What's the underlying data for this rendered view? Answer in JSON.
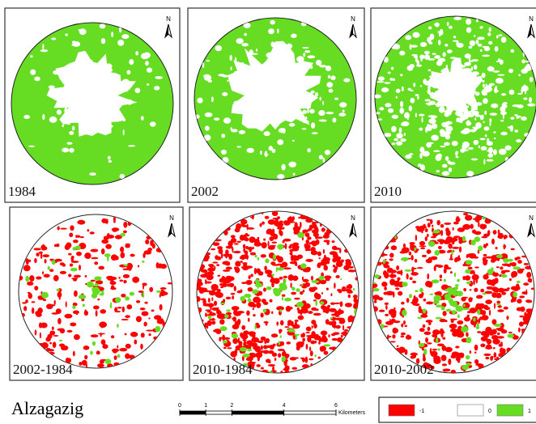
{
  "panels": [
    {
      "label": "1984"
    },
    {
      "label": "2002"
    },
    {
      "label": "2010"
    },
    {
      "label": "2002-1984"
    },
    {
      "label": "2010-1984"
    },
    {
      "label": "2010-2002"
    }
  ],
  "north": "N",
  "title": "Alzagazig",
  "scale": {
    "ticks": [
      0,
      1,
      2,
      4,
      6
    ],
    "unit": "Kilometers"
  },
  "legend": [
    {
      "label": "-1",
      "color": "#ff0000"
    },
    {
      "label": "0",
      "color": "#ffffff"
    },
    {
      "label": "1",
      "color": "#66dd22"
    }
  ]
}
